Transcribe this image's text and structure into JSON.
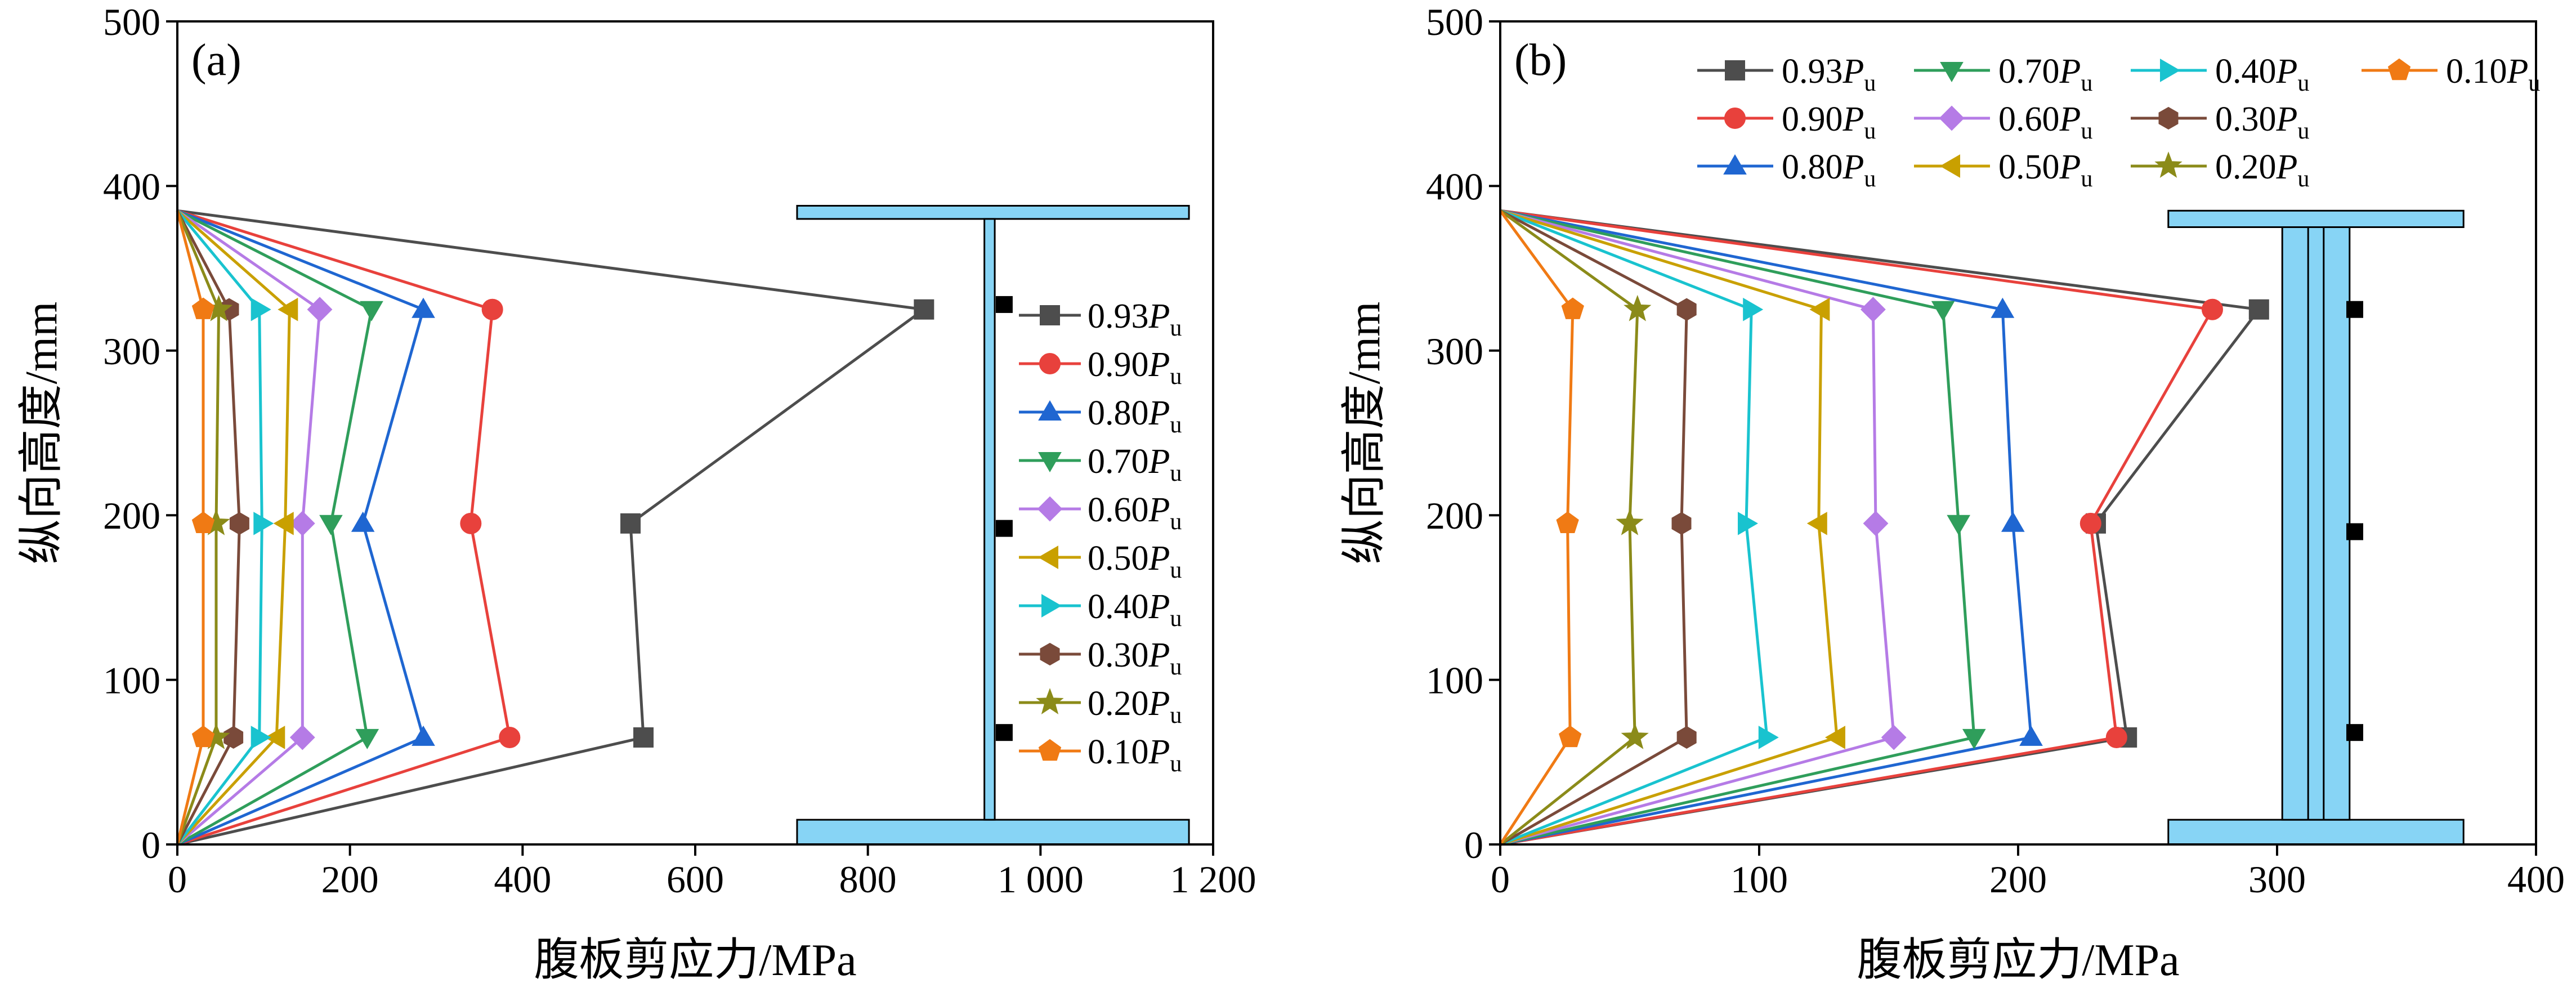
{
  "colors": {
    "0.93": "#4d4d4d",
    "0.90": "#e8413c",
    "0.80": "#1f66d1",
    "0.70": "#2f9e5b",
    "0.60": "#b57be6",
    "0.50": "#c9a000",
    "0.40": "#19c3cf",
    "0.30": "#7a4a3a",
    "0.20": "#8b8b19",
    "0.10": "#f07a14",
    "section_fill": "#87d4f5"
  },
  "chart_data": [
    {
      "type": "line",
      "panel_label": "(a)",
      "xlabel": "腹板剪应力/MPa",
      "ylabel": "纵向高度/mm",
      "xlim": [
        0,
        1200
      ],
      "ylim": [
        0,
        500
      ],
      "xticks": [
        0,
        200,
        400,
        600,
        800,
        1000,
        1200
      ],
      "xtick_labels": [
        "0",
        "200",
        "400",
        "600",
        "800",
        "1 000",
        "1 200"
      ],
      "yticks": [
        0,
        100,
        200,
        300,
        400,
        500
      ],
      "ytick_labels": [
        "0",
        "100",
        "200",
        "300",
        "400",
        "500"
      ],
      "legend_position": "right-inside",
      "y_points": [
        0,
        65,
        195,
        325,
        385
      ],
      "series": [
        {
          "key": "0.93",
          "name": "0.93",
          "suffix": "u",
          "marker": "square",
          "x": [
            0,
            540,
            525,
            865,
            0
          ]
        },
        {
          "key": "0.90",
          "name": "0.90",
          "suffix": "u",
          "marker": "circle",
          "x": [
            0,
            385,
            340,
            365,
            0
          ]
        },
        {
          "key": "0.80",
          "name": "0.80",
          "suffix": "u",
          "marker": "triangle-up",
          "x": [
            0,
            285,
            215,
            285,
            0
          ]
        },
        {
          "key": "0.70",
          "name": "0.70",
          "suffix": "u",
          "marker": "triangle-down",
          "x": [
            0,
            220,
            178,
            225,
            0
          ]
        },
        {
          "key": "0.60",
          "name": "0.60",
          "suffix": "u",
          "marker": "diamond",
          "x": [
            0,
            145,
            145,
            165,
            0
          ]
        },
        {
          "key": "0.50",
          "name": "0.50",
          "suffix": "u",
          "marker": "triangle-left",
          "x": [
            0,
            115,
            125,
            130,
            0
          ]
        },
        {
          "key": "0.40",
          "name": "0.40",
          "suffix": "u",
          "marker": "triangle-right",
          "x": [
            0,
            95,
            98,
            95,
            0
          ]
        },
        {
          "key": "0.30",
          "name": "0.30",
          "suffix": "u",
          "marker": "hexagon",
          "x": [
            0,
            65,
            72,
            60,
            0
          ]
        },
        {
          "key": "0.20",
          "name": "0.20",
          "suffix": "u",
          "marker": "star",
          "x": [
            0,
            45,
            45,
            48,
            0
          ]
        },
        {
          "key": "0.10",
          "name": "0.10",
          "suffix": "u",
          "marker": "pentagon",
          "x": [
            0,
            30,
            30,
            30,
            0
          ]
        }
      ],
      "section": {
        "flange_top_y": [
          380,
          388
        ],
        "flange_bottom_y": [
          0,
          15
        ],
        "flange_x": [
          718,
          1172
        ],
        "web_x": [
          935,
          947
        ],
        "gauges": [
          [
            958,
            328
          ],
          [
            958,
            192
          ],
          [
            958,
            68
          ]
        ]
      }
    },
    {
      "type": "line",
      "panel_label": "(b)",
      "xlabel": "腹板剪应力/MPa",
      "ylabel": "纵向高度/mm",
      "xlim": [
        0,
        400
      ],
      "ylim": [
        0,
        500
      ],
      "xticks": [
        0,
        100,
        200,
        300,
        400
      ],
      "xtick_labels": [
        "0",
        "100",
        "200",
        "300",
        "400"
      ],
      "yticks": [
        0,
        100,
        200,
        300,
        400,
        500
      ],
      "ytick_labels": [
        "0",
        "100",
        "200",
        "300",
        "400",
        "500"
      ],
      "legend_position": "top",
      "y_points": [
        0,
        65,
        195,
        325,
        385
      ],
      "series": [
        {
          "key": "0.93",
          "name": "0.93",
          "suffix": "u",
          "marker": "square",
          "x": [
            0,
            242,
            230,
            293,
            0
          ]
        },
        {
          "key": "0.90",
          "name": "0.90",
          "suffix": "u",
          "marker": "circle",
          "x": [
            0,
            238,
            228,
            275,
            0
          ]
        },
        {
          "key": "0.80",
          "name": "0.80",
          "suffix": "u",
          "marker": "triangle-up",
          "x": [
            0,
            205,
            198,
            194,
            0
          ]
        },
        {
          "key": "0.70",
          "name": "0.70",
          "suffix": "u",
          "marker": "triangle-down",
          "x": [
            0,
            183,
            177,
            171,
            0
          ]
        },
        {
          "key": "0.60",
          "name": "0.60",
          "suffix": "u",
          "marker": "diamond",
          "x": [
            0,
            152,
            145,
            144,
            0
          ]
        },
        {
          "key": "0.50",
          "name": "0.50",
          "suffix": "u",
          "marker": "triangle-left",
          "x": [
            0,
            130,
            123,
            124,
            0
          ]
        },
        {
          "key": "0.40",
          "name": "0.40",
          "suffix": "u",
          "marker": "triangle-right",
          "x": [
            0,
            103,
            95,
            97,
            0
          ]
        },
        {
          "key": "0.30",
          "name": "0.30",
          "suffix": "u",
          "marker": "hexagon",
          "x": [
            0,
            72,
            70,
            72,
            0
          ]
        },
        {
          "key": "0.20",
          "name": "0.20",
          "suffix": "u",
          "marker": "star",
          "x": [
            0,
            52,
            50,
            53,
            0
          ]
        },
        {
          "key": "0.10",
          "name": "0.10",
          "suffix": "u",
          "marker": "pentagon",
          "x": [
            0,
            27,
            26,
            28,
            0
          ]
        }
      ],
      "section": {
        "flange_top_y": [
          375,
          385
        ],
        "flange_bottom_y": [
          0,
          15
        ],
        "flange_x": [
          258,
          372
        ],
        "web_x": [
          302,
          328
        ],
        "web_inner_x": [
          312,
          318
        ],
        "gauges": [
          [
            330,
            325
          ],
          [
            330,
            190
          ],
          [
            330,
            68
          ]
        ]
      }
    }
  ]
}
